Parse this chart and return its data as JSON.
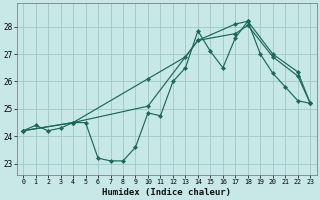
{
  "bg_color": "#c8e8e8",
  "grid_color": "#a0c8c8",
  "line_color": "#1a6858",
  "xlim": [
    -0.5,
    23.5
  ],
  "ylim": [
    22.6,
    28.85
  ],
  "xticks": [
    0,
    1,
    2,
    3,
    4,
    5,
    6,
    7,
    8,
    9,
    10,
    11,
    12,
    13,
    14,
    15,
    16,
    17,
    18,
    19,
    20,
    21,
    22,
    23
  ],
  "yticks": [
    23,
    24,
    25,
    26,
    27,
    28
  ],
  "xlabel": "Humidex (Indice chaleur)",
  "line1_x": [
    0,
    1,
    2,
    3,
    4,
    5,
    6,
    7,
    8,
    9,
    10,
    11,
    12,
    13,
    14,
    15,
    16,
    17,
    18,
    19,
    20,
    21,
    22,
    23
  ],
  "line1_y": [
    24.2,
    24.4,
    24.2,
    24.3,
    24.5,
    24.5,
    23.2,
    23.1,
    23.1,
    23.6,
    24.85,
    24.75,
    26.0,
    26.5,
    27.85,
    27.1,
    26.5,
    27.6,
    28.2,
    27.0,
    26.3,
    25.8,
    25.3,
    25.2
  ],
  "line2_x": [
    0,
    4,
    10,
    14,
    17,
    18,
    20,
    22,
    23
  ],
  "line2_y": [
    24.2,
    24.5,
    25.1,
    27.5,
    28.1,
    28.2,
    27.0,
    26.35,
    25.2
  ],
  "line3_x": [
    0,
    4,
    10,
    13,
    14,
    17,
    18,
    20,
    22,
    23
  ],
  "line3_y": [
    24.2,
    24.5,
    26.1,
    26.9,
    27.5,
    27.75,
    28.05,
    26.9,
    26.2,
    25.2
  ]
}
